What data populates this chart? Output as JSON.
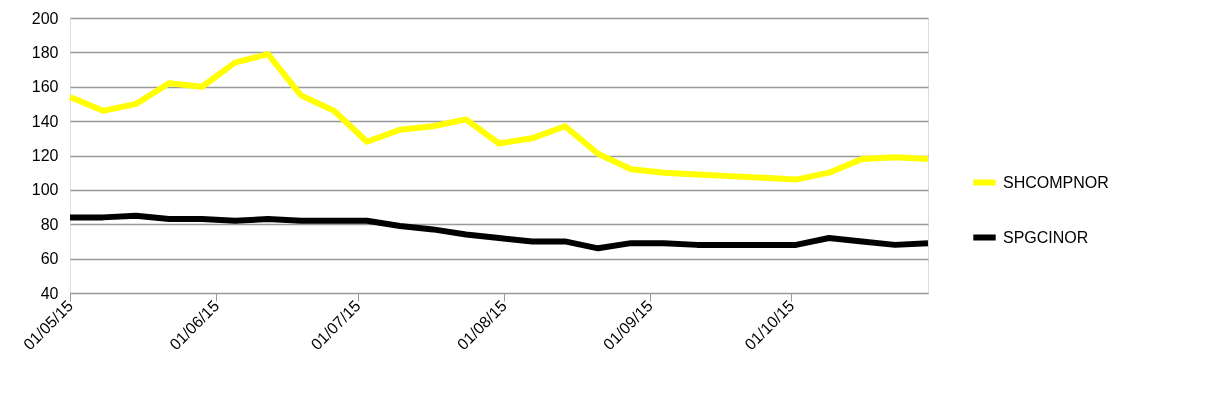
{
  "chart_data": {
    "type": "line",
    "x": [
      "2015-05-01",
      "2015-05-08",
      "2015-05-15",
      "2015-05-22",
      "2015-05-29",
      "2015-06-05",
      "2015-06-12",
      "2015-06-19",
      "2015-06-26",
      "2015-07-03",
      "2015-07-10",
      "2015-07-17",
      "2015-07-24",
      "2015-07-31",
      "2015-08-07",
      "2015-08-14",
      "2015-08-21",
      "2015-08-28",
      "2015-09-04",
      "2015-09-11",
      "2015-09-18",
      "2015-09-25",
      "2015-10-02",
      "2015-10-09",
      "2015-10-16",
      "2015-10-23",
      "2015-10-30"
    ],
    "series": [
      {
        "name": "SHCOMPNOR",
        "color": "#ffff00",
        "values": [
          154,
          146,
          150,
          162,
          160,
          174,
          179,
          155,
          146,
          128,
          135,
          137,
          141,
          127,
          130,
          137,
          121,
          112,
          110,
          109,
          108,
          107,
          106,
          110,
          118,
          119,
          118
        ]
      },
      {
        "name": "SPGCINOR",
        "color": "#000000",
        "values": [
          84,
          84,
          85,
          83,
          83,
          82,
          83,
          82,
          82,
          82,
          79,
          77,
          74,
          72,
          70,
          70,
          66,
          69,
          69,
          68,
          68,
          68,
          68,
          72,
          70,
          68,
          69
        ]
      }
    ],
    "xlim": [
      "2015-05-01",
      "2015-10-30"
    ],
    "xticks": [
      {
        "value": "2015-05-01",
        "label": "01/05/15"
      },
      {
        "value": "2015-06-01",
        "label": "01/06/15"
      },
      {
        "value": "2015-07-01",
        "label": "01/07/15"
      },
      {
        "value": "2015-08-01",
        "label": "01/08/15"
      },
      {
        "value": "2015-09-01",
        "label": "01/09/15"
      },
      {
        "value": "2015-10-01",
        "label": "01/10/15"
      }
    ],
    "ylim": [
      40,
      200
    ],
    "yticks": [
      40,
      60,
      80,
      100,
      120,
      140,
      160,
      180,
      200
    ],
    "grid": "y",
    "legend": "right",
    "marker": "none",
    "line_style": "solid"
  }
}
